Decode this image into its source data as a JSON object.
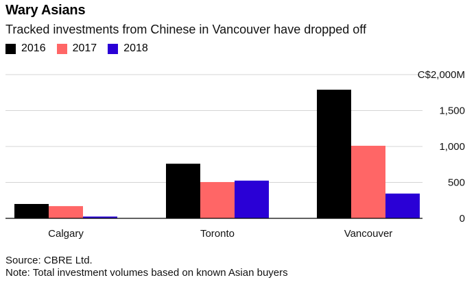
{
  "chart_data": {
    "type": "bar",
    "title": "Wary Asians",
    "subtitle": "Tracked investments from Chinese in Vancouver have dropped off",
    "categories": [
      "Calgary",
      "Toronto",
      "Vancouver"
    ],
    "series": [
      {
        "name": "2016",
        "color": "#000000",
        "values": [
          200,
          760,
          1790
        ]
      },
      {
        "name": "2017",
        "color": "#ff6666",
        "values": [
          170,
          505,
          1010
        ]
      },
      {
        "name": "2018",
        "color": "#2a00d6",
        "values": [
          25,
          525,
          345
        ]
      }
    ],
    "yticks": [
      {
        "value": 0,
        "label": "0"
      },
      {
        "value": 500,
        "label": "500"
      },
      {
        "value": 1000,
        "label": "1,000"
      },
      {
        "value": 1500,
        "label": "1,500"
      },
      {
        "value": 2000,
        "label": "C$2,000M"
      }
    ],
    "ylim": [
      0,
      2000
    ],
    "grid": true,
    "legend_position": "top-left",
    "xlabel": "",
    "ylabel": ""
  },
  "footer": {
    "source": "Source: CBRE Ltd.",
    "note": "Note: Total investment volumes based on known Asian buyers"
  }
}
